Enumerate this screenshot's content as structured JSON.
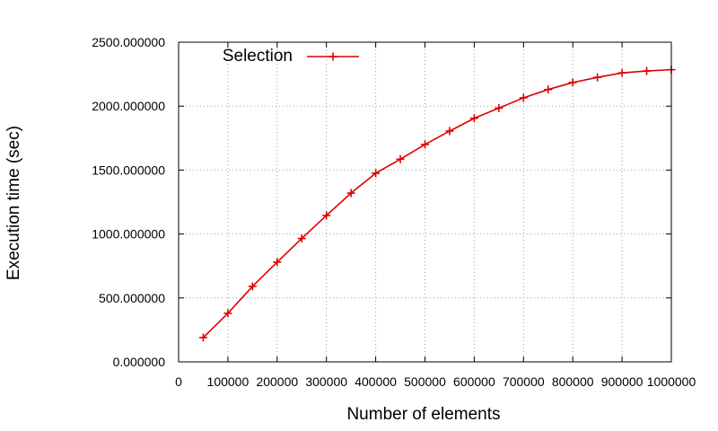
{
  "chart_data": {
    "type": "line",
    "xlabel": "Number of elements",
    "ylabel": "Execution time (sec)",
    "xlim": [
      0,
      1000000
    ],
    "ylim": [
      0,
      2500
    ],
    "grid": true,
    "legend_position": "top-left",
    "x_ticks": [
      "0",
      "100000",
      "200000",
      "300000",
      "400000",
      "500000",
      "600000",
      "700000",
      "800000",
      "900000",
      "1000000"
    ],
    "y_ticks": [
      "0.000000",
      "500.000000",
      "1000.000000",
      "1500.000000",
      "2000.000000",
      "2500.000000"
    ],
    "series": [
      {
        "name": "Selection",
        "color": "#dd0000",
        "marker": "plus",
        "x": [
          50000,
          100000,
          150000,
          200000,
          250000,
          300000,
          350000,
          400000,
          450000,
          500000,
          550000,
          600000,
          650000,
          700000,
          750000,
          800000,
          850000,
          900000,
          950000,
          1000000
        ],
        "y": [
          190,
          380,
          590,
          780,
          965,
          1145,
          1320,
          1475,
          1585,
          1700,
          1805,
          1905,
          1985,
          2065,
          2130,
          2185,
          2225,
          2260,
          2275,
          2285
        ]
      }
    ]
  }
}
